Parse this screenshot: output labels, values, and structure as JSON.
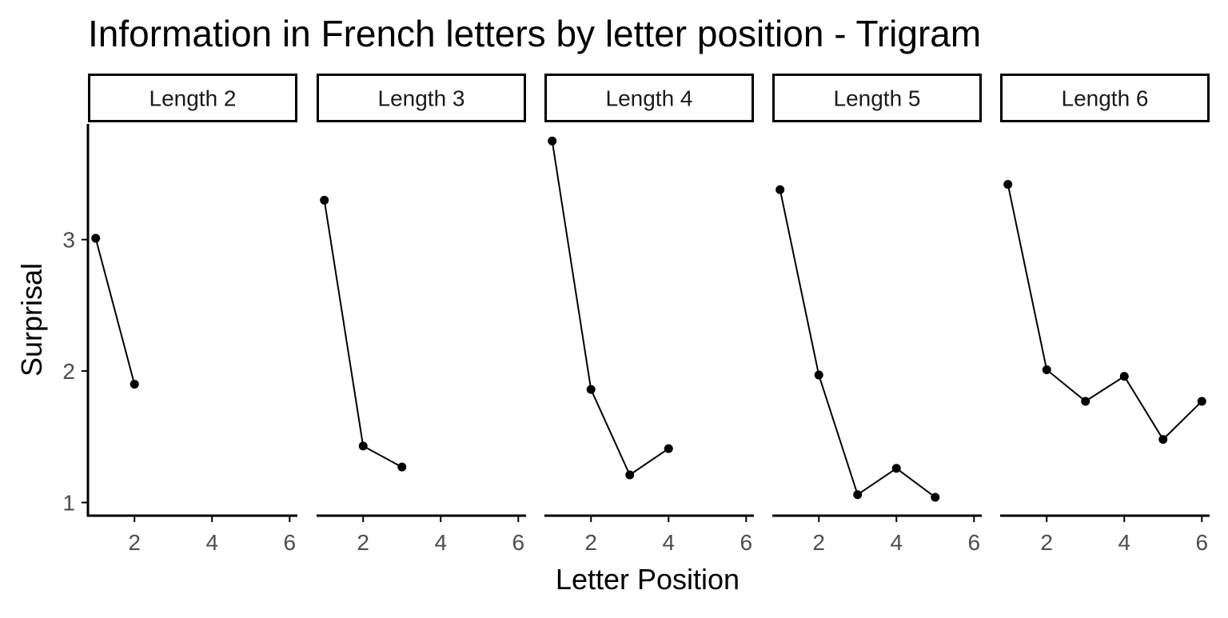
{
  "chart_data": {
    "type": "line",
    "title": "Information in French letters by letter position - Trigram",
    "xlabel": "Letter Position",
    "ylabel": "Surprisal",
    "xlim": [
      0.8,
      6.2
    ],
    "ylim": [
      0.9,
      3.88
    ],
    "xticks": [
      2,
      4,
      6
    ],
    "yticks": [
      1,
      2,
      3
    ],
    "grid": false,
    "facets": [
      {
        "label": "Length 2",
        "x": [
          1,
          2
        ],
        "y": [
          3.01,
          1.9
        ]
      },
      {
        "label": "Length 3",
        "x": [
          1,
          2,
          3
        ],
        "y": [
          3.3,
          1.43,
          1.27
        ]
      },
      {
        "label": "Length 4",
        "x": [
          1,
          2,
          3,
          4
        ],
        "y": [
          3.75,
          1.86,
          1.21,
          1.41
        ]
      },
      {
        "label": "Length 5",
        "x": [
          1,
          2,
          3,
          4,
          5
        ],
        "y": [
          3.38,
          1.97,
          1.06,
          1.26,
          1.04
        ]
      },
      {
        "label": "Length 6",
        "x": [
          1,
          2,
          3,
          4,
          5,
          6
        ],
        "y": [
          3.42,
          2.01,
          1.77,
          1.96,
          1.48,
          1.77
        ]
      }
    ]
  }
}
